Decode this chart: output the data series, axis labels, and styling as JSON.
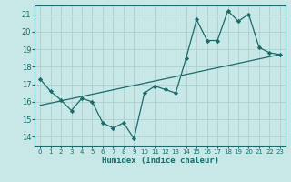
{
  "title": "",
  "xlabel": "Humidex (Indice chaleur)",
  "ylabel": "",
  "background_color": "#c8e8e8",
  "grid_color": "#b0d0d0",
  "line_color": "#1a6b6b",
  "xlim": [
    -0.5,
    23.5
  ],
  "ylim": [
    13.5,
    21.5
  ],
  "yticks": [
    14,
    15,
    16,
    17,
    18,
    19,
    20,
    21
  ],
  "xticks": [
    0,
    1,
    2,
    3,
    4,
    5,
    6,
    7,
    8,
    9,
    10,
    11,
    12,
    13,
    14,
    15,
    16,
    17,
    18,
    19,
    20,
    21,
    22,
    23
  ],
  "series1_x": [
    0,
    1,
    2,
    3,
    4,
    5,
    6,
    7,
    8,
    9,
    10,
    11,
    12,
    13,
    14,
    15,
    16,
    17,
    18,
    19,
    20,
    21,
    22,
    23
  ],
  "series1_y": [
    17.3,
    16.6,
    16.1,
    15.5,
    16.2,
    16.0,
    14.8,
    14.5,
    14.8,
    13.9,
    16.5,
    16.9,
    16.7,
    16.5,
    18.5,
    20.7,
    19.5,
    19.5,
    21.2,
    20.6,
    21.0,
    19.1,
    18.8,
    18.7
  ],
  "series2_x": [
    0,
    23
  ],
  "series2_y": [
    15.8,
    18.7
  ]
}
